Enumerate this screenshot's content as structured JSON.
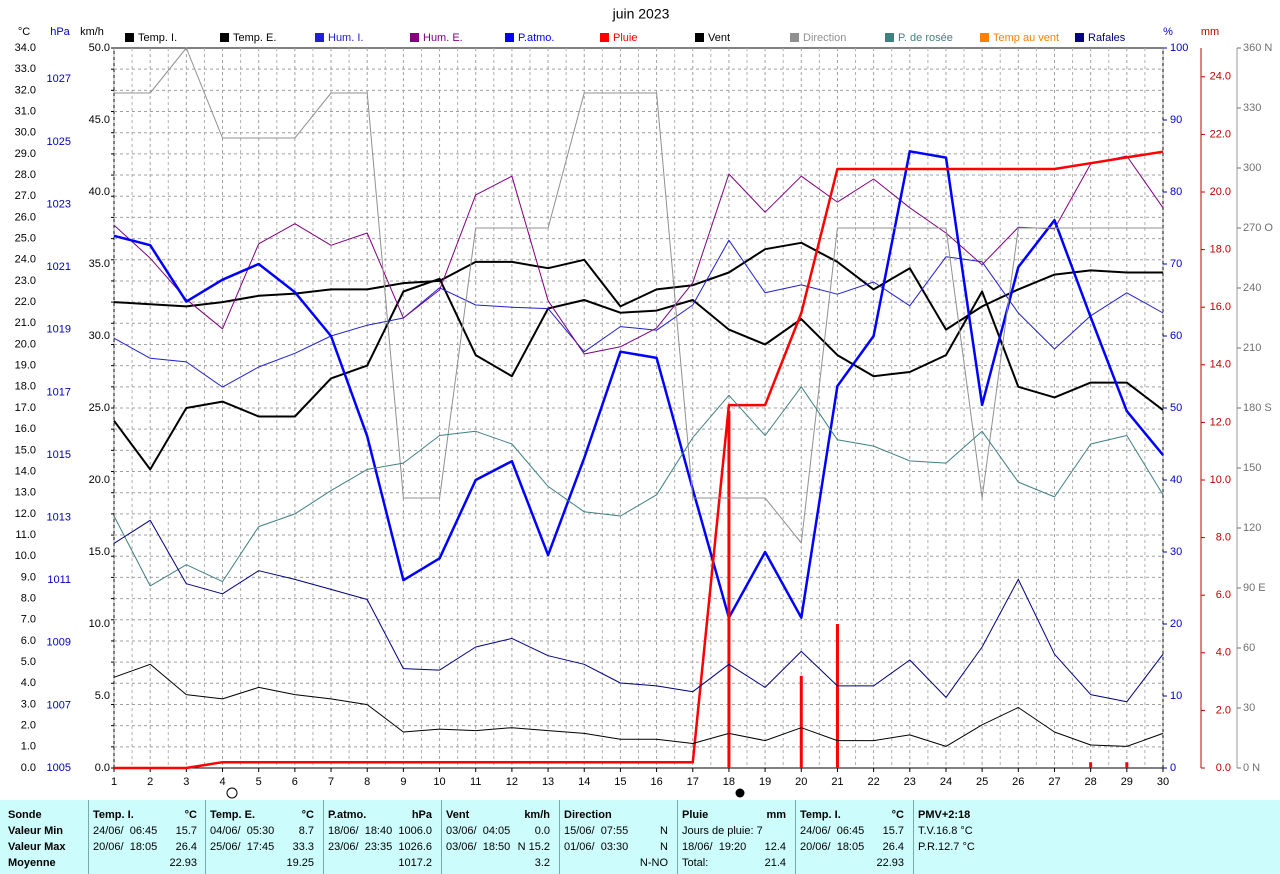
{
  "chart_data": {
    "type": "line",
    "title": "juin 2023",
    "x": [
      1,
      2,
      3,
      4,
      5,
      6,
      7,
      8,
      9,
      10,
      11,
      12,
      13,
      14,
      15,
      16,
      17,
      18,
      19,
      20,
      21,
      22,
      23,
      24,
      25,
      26,
      27,
      28,
      29,
      30
    ],
    "xlim": [
      1,
      30
    ],
    "xticks": [
      1,
      2,
      3,
      4,
      5,
      6,
      7,
      8,
      9,
      10,
      11,
      12,
      13,
      14,
      15,
      16,
      17,
      18,
      19,
      20,
      21,
      22,
      23,
      24,
      25,
      26,
      27,
      28,
      29,
      30
    ],
    "grid": true,
    "axes": {
      "temp": {
        "title": "°C",
        "color": "#000000",
        "lim": [
          0,
          34
        ],
        "ticks": [
          {
            "value": 0,
            "label": "0.0"
          },
          {
            "value": 1,
            "label": "1.0"
          },
          {
            "value": 2,
            "label": "2.0"
          },
          {
            "value": 3,
            "label": "3.0"
          },
          {
            "value": 4,
            "label": "4.0"
          },
          {
            "value": 5,
            "label": "5.0"
          },
          {
            "value": 6,
            "label": "6.0"
          },
          {
            "value": 7,
            "label": "7.0"
          },
          {
            "value": 8,
            "label": "8.0"
          },
          {
            "value": 9,
            "label": "9.0"
          },
          {
            "value": 10,
            "label": "10.0"
          },
          {
            "value": 11,
            "label": "11.0"
          },
          {
            "value": 12,
            "label": "12.0"
          },
          {
            "value": 13,
            "label": "13.0"
          },
          {
            "value": 14,
            "label": "14.0"
          },
          {
            "value": 15,
            "label": "15.0"
          },
          {
            "value": 16,
            "label": "16.0"
          },
          {
            "value": 17,
            "label": "17.0"
          },
          {
            "value": 18,
            "label": "18.0"
          },
          {
            "value": 19,
            "label": "19.0"
          },
          {
            "value": 20,
            "label": "20.0"
          },
          {
            "value": 21,
            "label": "21.0"
          },
          {
            "value": 22,
            "label": "22.0"
          },
          {
            "value": 23,
            "label": "23.0"
          },
          {
            "value": 24,
            "label": "24.0"
          },
          {
            "value": 25,
            "label": "25.0"
          },
          {
            "value": 26,
            "label": "26.0"
          },
          {
            "value": 27,
            "label": "27.0"
          },
          {
            "value": 28,
            "label": "28.0"
          },
          {
            "value": 29,
            "label": "29.0"
          },
          {
            "value": 30,
            "label": "30.0"
          },
          {
            "value": 31,
            "label": "31.0"
          },
          {
            "value": 32,
            "label": "32.0"
          },
          {
            "value": 33,
            "label": "33.0"
          },
          {
            "value": 34,
            "label": "34.0"
          }
        ]
      },
      "hpa": {
        "title": "hPa",
        "color": "#0000c0",
        "lim": [
          1005,
          1028
        ],
        "ticks": [
          1005,
          1007,
          1009,
          1011,
          1013,
          1015,
          1017,
          1019,
          1021,
          1023,
          1025,
          1027
        ]
      },
      "kmh": {
        "title": "km/h",
        "color": "#000000",
        "lim": [
          0,
          50
        ],
        "ticks": [
          {
            "value": 0,
            "label": "0.0"
          },
          {
            "value": 5,
            "label": "5.0"
          },
          {
            "value": 10,
            "label": "10.0"
          },
          {
            "value": 15,
            "label": "15.0"
          },
          {
            "value": 20,
            "label": "20.0"
          },
          {
            "value": 25,
            "label": "25.0"
          },
          {
            "value": 30,
            "label": "30.0"
          },
          {
            "value": 35,
            "label": "35.0"
          },
          {
            "value": 40,
            "label": "40.0"
          },
          {
            "value": 45,
            "label": "45.0"
          },
          {
            "value": 50,
            "label": "50.0"
          }
        ]
      },
      "pct": {
        "title": "%",
        "color": "#0000c0",
        "lim": [
          0,
          100
        ],
        "ticks": [
          0,
          10,
          20,
          30,
          40,
          50,
          60,
          70,
          80,
          90,
          100
        ]
      },
      "mm": {
        "title": "mm",
        "color": "#c00000",
        "lim": [
          0,
          25
        ],
        "ticks": [
          {
            "value": 0,
            "label": "0.0"
          },
          {
            "value": 2,
            "label": "2.0"
          },
          {
            "value": 4,
            "label": "4.0"
          },
          {
            "value": 6,
            "label": "6.0"
          },
          {
            "value": 8,
            "label": "8.0"
          },
          {
            "value": 10,
            "label": "10.0"
          },
          {
            "value": 12,
            "label": "12.0"
          },
          {
            "value": 14,
            "label": "14.0"
          },
          {
            "value": 16,
            "label": "16.0"
          },
          {
            "value": 18,
            "label": "18.0"
          },
          {
            "value": 20,
            "label": "20.0"
          },
          {
            "value": 22,
            "label": "22.0"
          },
          {
            "value": 24,
            "label": "24.0"
          }
        ]
      },
      "dir": {
        "color": "#707070",
        "lim": [
          0,
          360
        ],
        "ticks": [
          {
            "value": 0,
            "label": "0 N"
          },
          30,
          60,
          {
            "value": 90,
            "label": "90 E"
          },
          120,
          150,
          {
            "value": 180,
            "label": "180 S"
          },
          210,
          240,
          {
            "value": 270,
            "label": "270 O"
          },
          300,
          330,
          {
            "value": 360,
            "label": "360 N"
          }
        ]
      }
    },
    "series": [
      {
        "name": "Temp. I.",
        "color": "#000000",
        "axis": "temp",
        "width": 2,
        "values": [
          22.0,
          21.9,
          21.8,
          22.0,
          22.3,
          22.4,
          22.6,
          22.6,
          22.9,
          23.0,
          23.9,
          23.9,
          23.6,
          24.0,
          21.8,
          22.6,
          22.8,
          23.4,
          24.5,
          24.8,
          23.9,
          22.6,
          23.6,
          20.7,
          21.8,
          22.6,
          23.3,
          23.5,
          23.4,
          23.4
        ]
      },
      {
        "name": "Temp. E.",
        "color": "#000000",
        "axis": "temp",
        "width": 2,
        "values": [
          16.4,
          14.1,
          17.0,
          17.3,
          16.6,
          16.6,
          18.4,
          19.0,
          22.5,
          23.1,
          19.5,
          18.5,
          21.7,
          22.1,
          21.5,
          21.6,
          22.1,
          20.7,
          20.0,
          21.2,
          19.5,
          18.5,
          18.7,
          19.5,
          22.5,
          18.0,
          17.5,
          18.2,
          18.2,
          16.9
        ]
      },
      {
        "name": "Hum. I.",
        "color": "#2020d0",
        "axis": "pct",
        "width": 1,
        "values": [
          59.7,
          56.9,
          56.4,
          52.9,
          55.7,
          57.6,
          60.0,
          61.5,
          62.5,
          66.7,
          64.3,
          64.0,
          63.8,
          57.8,
          61.3,
          60.8,
          64.3,
          73.3,
          66.0,
          67.1,
          65.8,
          67.5,
          64.2,
          71.0,
          70.3,
          63.2,
          58.2,
          62.8,
          66.0,
          63.2
        ]
      },
      {
        "name": "Hum. E.",
        "color": "#800080",
        "axis": "pct",
        "width": 1,
        "values": [
          75.4,
          70.8,
          65.1,
          61.0,
          72.8,
          75.6,
          72.6,
          74.3,
          62.5,
          66.4,
          79.6,
          82.2,
          64.9,
          57.5,
          58.5,
          61.1,
          67.4,
          82.5,
          77.2,
          82.2,
          78.6,
          81.8,
          77.8,
          74.3,
          69.9,
          75.1,
          74.9,
          83.9,
          85.0,
          77.8
        ]
      },
      {
        "name": "P.atmo.",
        "color": "#0000ff",
        "axis": "hpa",
        "width": 2.5,
        "values": [
          1022.0,
          1021.7,
          1019.9,
          1020.6,
          1021.1,
          1020.2,
          1018.8,
          1015.6,
          1011.0,
          1011.7,
          1014.2,
          1014.8,
          1011.8,
          1014.9,
          1018.3,
          1018.1,
          1013.9,
          1009.8,
          1011.9,
          1009.8,
          1017.2,
          1018.8,
          1024.7,
          1024.5,
          1016.6,
          1021.0,
          1022.5,
          1019.4,
          1016.4,
          1015.0
        ]
      },
      {
        "name": "Pluie",
        "color": "#ff0000",
        "axis": "mm",
        "width": 2.5,
        "values": [
          0,
          0,
          0,
          0.2,
          0.2,
          0.2,
          0.2,
          0.2,
          0.2,
          0.2,
          0.2,
          0.2,
          0.2,
          0.2,
          0.2,
          0.2,
          0.2,
          12.6,
          12.6,
          15.8,
          20.8,
          20.8,
          20.8,
          20.8,
          20.8,
          20.8,
          20.8,
          21.0,
          21.2,
          21.4
        ],
        "daily": [
          null,
          null,
          null,
          null,
          null,
          null,
          null,
          null,
          null,
          null,
          null,
          null,
          null,
          null,
          null,
          null,
          null,
          12.4,
          null,
          3.2,
          5.0,
          null,
          null,
          null,
          null,
          null,
          null,
          0.2,
          0.2,
          null
        ]
      },
      {
        "name": "Vent",
        "color": "#000000",
        "axis": "kmh",
        "width": 1,
        "values": [
          6.3,
          7.2,
          5.1,
          4.8,
          5.6,
          5.1,
          4.8,
          4.4,
          2.5,
          2.7,
          2.6,
          2.8,
          2.6,
          2.4,
          2.0,
          2.0,
          1.7,
          2.4,
          1.9,
          2.8,
          1.9,
          1.9,
          2.3,
          1.5,
          3.0,
          4.2,
          2.5,
          1.6,
          1.5,
          2.4
        ]
      },
      {
        "name": "Direction",
        "color": "#909090",
        "axis": "dir",
        "width": 1,
        "values": [
          337.5,
          337.5,
          360,
          315,
          315,
          315,
          337.5,
          337.5,
          135,
          135,
          270,
          270,
          270,
          337.5,
          337.5,
          337.5,
          135,
          135,
          135,
          112.5,
          270,
          270,
          270,
          270,
          135,
          270,
          270,
          270,
          270,
          270
        ]
      },
      {
        "name": "P. de rosée",
        "color": "#408080",
        "axis": "temp",
        "width": 1,
        "values": [
          11.9,
          8.6,
          9.6,
          8.8,
          11.4,
          12.0,
          13.1,
          14.1,
          14.4,
          15.7,
          15.9,
          15.3,
          13.3,
          12.1,
          11.9,
          12.9,
          15.6,
          17.6,
          15.7,
          18.0,
          15.5,
          15.2,
          14.5,
          14.4,
          15.9,
          13.5,
          12.8,
          15.3,
          15.7,
          12.9
        ]
      },
      {
        "name": "Temp au vent",
        "color": "#ff8000",
        "axis": "temp"
      },
      {
        "name": "Rafales",
        "color": "#000080",
        "axis": "kmh",
        "width": 1,
        "values": [
          15.6,
          17.2,
          12.8,
          12.1,
          13.7,
          13.1,
          12.4,
          11.7,
          6.9,
          6.8,
          8.4,
          9.0,
          7.8,
          7.2,
          5.9,
          5.7,
          5.3,
          7.2,
          5.6,
          8.1,
          5.7,
          5.7,
          7.5,
          4.9,
          8.4,
          13.1,
          7.9,
          5.1,
          4.6,
          7.9
        ]
      }
    ]
  },
  "summary": {
    "row_headers": [
      "Sonde",
      "Valeur Min",
      "Valeur Max",
      "Moyenne"
    ],
    "columns": [
      {
        "head": "Temp. I.",
        "unit": "°C",
        "rows": [
          {
            "left": "24/06/  06:45",
            "right": "15.7"
          },
          {
            "left": "20/06/  18:05",
            "right": "26.4"
          },
          {
            "right": "22.93"
          }
        ]
      },
      {
        "head": "Temp. E.",
        "unit": "°C",
        "rows": [
          {
            "left": "04/06/  05:30",
            "right": "8.7"
          },
          {
            "left": "25/06/  17:45",
            "right": "33.3"
          },
          {
            "right": "19.25"
          }
        ]
      },
      {
        "head": "P.atmo.",
        "unit": "hPa",
        "rows": [
          {
            "left": "18/06/  18:40",
            "right": "1006.0"
          },
          {
            "left": "23/06/  23:35",
            "right": "1026.6"
          },
          {
            "right": "1017.2"
          }
        ]
      },
      {
        "head": "Vent",
        "unit": "km/h",
        "rows": [
          {
            "left": "03/06/  04:05",
            "right": "0.0"
          },
          {
            "left": "03/06/  18:50",
            "right": "N 15.2"
          },
          {
            "right": "3.2"
          }
        ]
      },
      {
        "head": "Direction",
        "rows": [
          {
            "left": "15/06/  07:55",
            "right": "N"
          },
          {
            "left": "01/06/  03:30",
            "right": "N"
          },
          {
            "right": "N-NO"
          }
        ]
      },
      {
        "head": "Pluie",
        "unit": "mm",
        "rows": [
          {
            "left": "Jours de pluie: 7"
          },
          {
            "left": "18/06/  19:20",
            "right": "12.4"
          },
          {
            "left": "Total:",
            "right": "21.4"
          }
        ]
      },
      {
        "head": "Temp. I.",
        "unit": "°C",
        "rows": [
          {
            "left": "24/06/  06:45",
            "right": "15.7"
          },
          {
            "left": "20/06/  18:05",
            "right": "26.4"
          },
          {
            "right": "22.93"
          }
        ]
      },
      {
        "head": "PMV+2:18",
        "rows": [
          {
            "left": "T.V.16.8 °C"
          },
          {
            "left": "P.R.12.7 °C"
          }
        ]
      }
    ]
  }
}
